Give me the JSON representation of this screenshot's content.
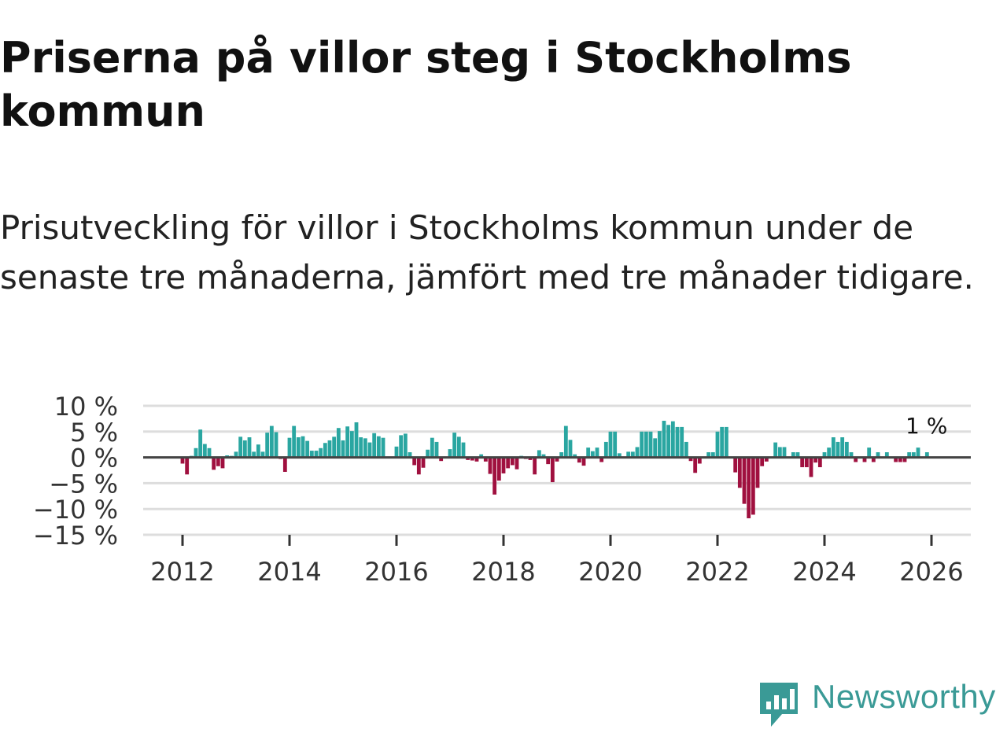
{
  "chart_data": {
    "type": "bar",
    "title": "Priserna på villor steg i Stockholms kommun",
    "subtitle": "Prisutveckling för villor i Stockholms kommun under de senaste tre månaderna, jämfört med tre månader tidigare.",
    "xlabel": "",
    "ylabel": "",
    "start": [
      2012,
      1
    ],
    "ylim": [
      -15,
      10
    ],
    "yticks": [
      10,
      5,
      0,
      -5,
      -10,
      -15
    ],
    "ytick_labels": [
      "10 %",
      "5 %",
      "0 %",
      "−5 %",
      "−10 %",
      "−15 %"
    ],
    "xticks": [
      2012,
      2014,
      2016,
      2018,
      2020,
      2022,
      2024,
      2026
    ],
    "positive_color": "#2aa6a1",
    "negative_color": "#a0103f",
    "zero_line_color": "#444444",
    "grid_color": "#dddddd",
    "annotation": {
      "label": "1 %",
      "value": 1
    },
    "values": [
      -1.2,
      -3.3,
      0.3,
      1.8,
      5.4,
      2.6,
      1.8,
      -2.4,
      -1.7,
      -2.1,
      0.4,
      0.3,
      1.1,
      4.0,
      3.3,
      3.9,
      1.1,
      2.5,
      1.1,
      4.8,
      6.1,
      4.9,
      -0.3,
      -2.8,
      3.8,
      6.1,
      3.9,
      4.1,
      3.2,
      1.3,
      1.3,
      1.8,
      2.8,
      3.3,
      4.0,
      5.7,
      3.3,
      6.0,
      5.1,
      6.8,
      3.9,
      3.7,
      2.9,
      4.7,
      4.1,
      3.8,
      0.1,
      0.0,
      2.1,
      4.3,
      4.6,
      1.0,
      -1.5,
      -3.3,
      -2.0,
      1.5,
      3.8,
      3.0,
      -0.7,
      0.1,
      1.6,
      4.8,
      4.0,
      2.9,
      -0.5,
      -0.6,
      -0.8,
      0.6,
      -0.8,
      -3.2,
      -7.2,
      -4.5,
      -3.1,
      -2.1,
      -1.5,
      -2.3,
      0.3,
      -0.3,
      -0.5,
      -3.3,
      1.4,
      0.6,
      -1.3,
      -4.8,
      -0.8,
      1.0,
      6.1,
      3.4,
      0.6,
      -1.0,
      -1.6,
      1.9,
      1.2,
      1.9,
      -0.9,
      3.0,
      5.0,
      5.0,
      0.8,
      0.1,
      1.1,
      1.1,
      2.0,
      5.0,
      5.0,
      5.0,
      3.7,
      5.1,
      7.1,
      6.3,
      7.0,
      5.9,
      5.9,
      3.0,
      -0.7,
      -3.0,
      -1.2,
      0.1,
      1.0,
      1.0,
      5.0,
      5.9,
      5.9,
      0.0,
      -2.9,
      -5.9,
      -9.0,
      -11.8,
      -11.1,
      -5.9,
      -1.7,
      -0.8,
      0.0,
      2.9,
      2.0,
      2.0,
      0.0,
      1.0,
      1.0,
      -1.9,
      -1.9,
      -3.8,
      -1.0,
      -1.9,
      1.0,
      1.9,
      3.9,
      3.0,
      3.9,
      3.0,
      1.0,
      -0.9,
      0.0,
      -0.9,
      1.9,
      -0.9,
      1.0,
      0.0,
      1.0,
      0.0,
      -0.9,
      -0.9,
      -0.9,
      1.0,
      1.0,
      1.9,
      0.0,
      1.0
    ]
  },
  "brand": {
    "name": "Newsworthy",
    "color": "#3a9a96"
  }
}
